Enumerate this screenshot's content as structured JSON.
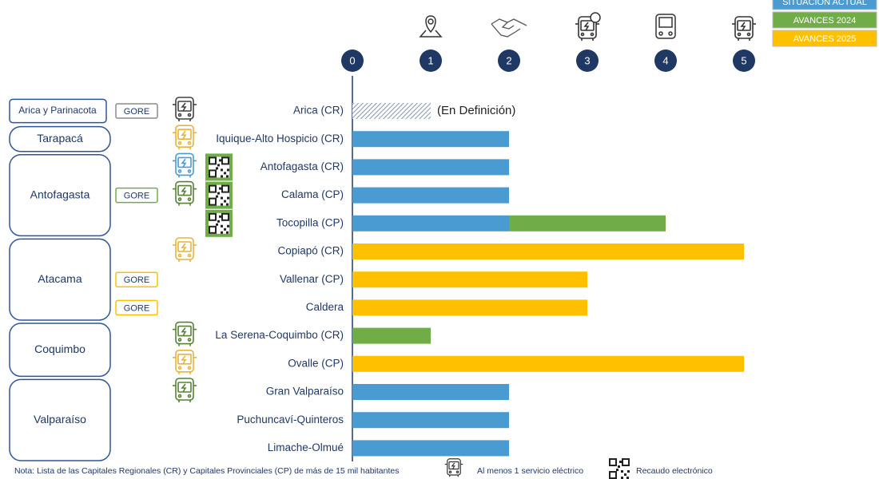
{
  "chart_data": {
    "type": "stacked-barh",
    "categories": [
      "Arica (CR)",
      "Iquique-Alto Hospicio (CR)",
      "Antofagasta (CR)",
      "Calama (CP)",
      "Tocopilla (CP)",
      "Copiapó (CR)",
      "Vallenar (CP)",
      "Caldera",
      "La Serena-Coquimbo (CR)",
      "Ovalle (CP)",
      "Gran Valparaíso",
      "Puchuncaví-Quinteros",
      "Limache-Olmué"
    ],
    "series": [
      {
        "name": "(En Definición)",
        "color": "#8497b0",
        "pattern": "hatch",
        "values": [
          1,
          null,
          null,
          null,
          null,
          null,
          null,
          null,
          null,
          null,
          null,
          null,
          null
        ]
      },
      {
        "name": "SITUACIÓN ACTUAL",
        "color": "#4a9bd1",
        "values": [
          null,
          2,
          2,
          2,
          2,
          null,
          null,
          null,
          null,
          null,
          2,
          2,
          2
        ]
      },
      {
        "name": "AVANCES 2024",
        "color": "#70ad47",
        "values": [
          null,
          null,
          null,
          null,
          2,
          null,
          null,
          null,
          1,
          null,
          null,
          null,
          null
        ]
      },
      {
        "name": "AVANCES 2025",
        "color": "#ffc000",
        "values": [
          null,
          null,
          null,
          null,
          null,
          5,
          3,
          3,
          null,
          5,
          null,
          null,
          null
        ]
      }
    ],
    "xlim": [
      0,
      5
    ],
    "xticks": [
      0,
      1,
      2,
      3,
      4,
      5
    ],
    "gore": [
      {
        "label": "GORE",
        "color": "#8c8c8c"
      },
      null,
      null,
      {
        "label": "GORE",
        "color": "#70ad47"
      },
      null,
      null,
      {
        "label": "GORE",
        "color": "#ffc000"
      },
      {
        "label": "GORE",
        "color": "#ffc000"
      },
      null,
      null,
      null,
      null,
      null
    ],
    "bus_icon_colors": [
      "#404040",
      "#e6b43c",
      "#4a9bd1",
      "#548235",
      null,
      "#e6b43c",
      null,
      null,
      "#548235",
      "#e6b43c",
      "#548235",
      null,
      null
    ],
    "qr": [
      false,
      false,
      true,
      true,
      true,
      false,
      false,
      false,
      false,
      false,
      false,
      false,
      false
    ]
  },
  "regions": [
    {
      "name": "Arica y Parinacota",
      "cities": 1
    },
    {
      "name": "Tarapacá",
      "cities": 1
    },
    {
      "name": "Antofagasta",
      "cities": 3
    },
    {
      "name": "Atacama",
      "cities": 3
    },
    {
      "name": "Coquimbo",
      "cities": 2
    },
    {
      "name": "Valparaíso",
      "cities": 3
    }
  ],
  "note": {
    "text": "Nota: Lista de las Capitales Regionales (CR) y Capitales Provinciales (CP) de más de 15 mil habitantes",
    "bus": "Al menos 1 servicio eléctrico",
    "qr": "Recaudo electrónico"
  }
}
